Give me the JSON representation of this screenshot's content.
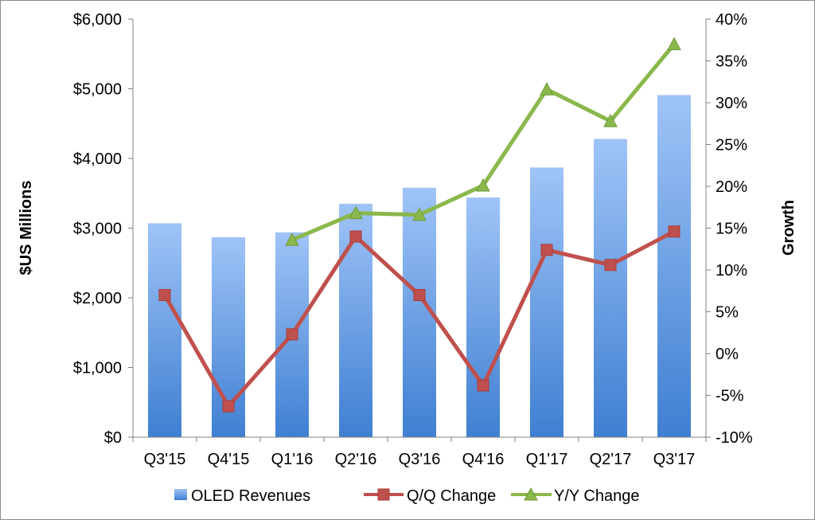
{
  "chart_data": {
    "type": "bar",
    "categories": [
      "Q3'15",
      "Q4'15",
      "Q1'16",
      "Q2'16",
      "Q3'16",
      "Q4'16",
      "Q1'17",
      "Q2'17",
      "Q3'17"
    ],
    "series": [
      {
        "name": "OLED Revenues",
        "type": "bar",
        "axis": "left",
        "color": "#5b9be6",
        "values": [
          3070,
          2870,
          2940,
          3350,
          3580,
          3440,
          3870,
          4280,
          4910
        ]
      },
      {
        "name": "Q/Q Change",
        "type": "line",
        "axis": "right",
        "marker": "square",
        "color": "#c0504d",
        "values": [
          7.0,
          -6.3,
          2.3,
          14.0,
          7.0,
          -3.8,
          12.4,
          10.6,
          14.6
        ]
      },
      {
        "name": "Y/Y Change",
        "type": "line",
        "axis": "right",
        "marker": "triangle",
        "color": "#8ab84b",
        "values": [
          null,
          null,
          13.6,
          16.8,
          16.6,
          20.1,
          31.6,
          27.8,
          37.0
        ]
      }
    ],
    "ylabel": "$US Millions",
    "y2label": "Growth",
    "ylim": [
      0,
      6000
    ],
    "y2lim": [
      -10,
      40
    ],
    "yticks": [
      "$0",
      "$1,000",
      "$2,000",
      "$3,000",
      "$4,000",
      "$5,000",
      "$6,000"
    ],
    "y2ticks": [
      "-10%",
      "-5%",
      "0%",
      "5%",
      "10%",
      "15%",
      "20%",
      "25%",
      "30%",
      "35%",
      "40%"
    ],
    "grid": false,
    "legend_position": "bottom"
  }
}
